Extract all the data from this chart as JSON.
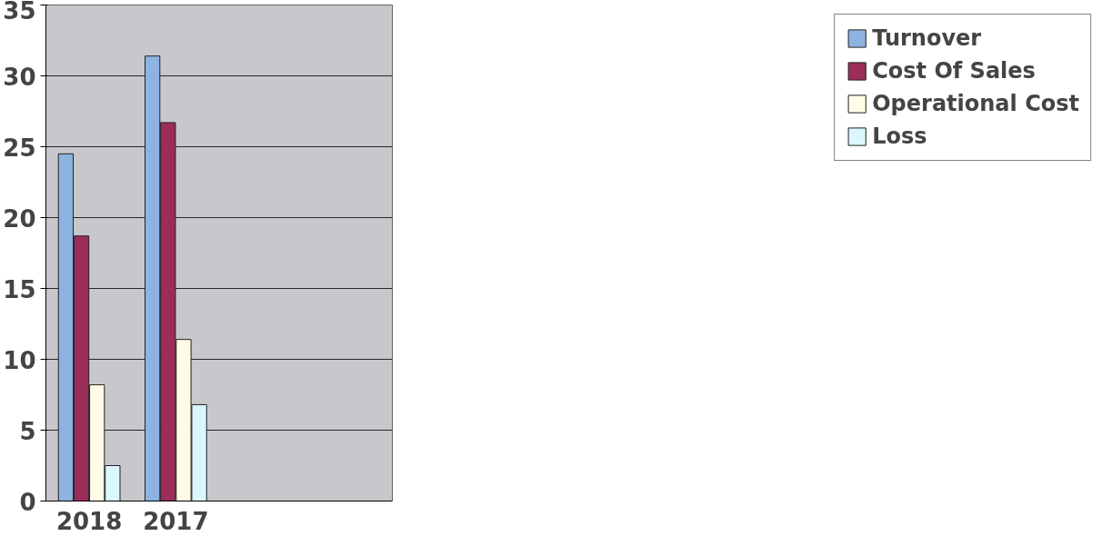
{
  "chart_data": {
    "type": "bar",
    "categories": [
      "2018",
      "2017",
      null,
      null
    ],
    "series": [
      {
        "name": "Turnover",
        "color": "#8db3e2",
        "values": [
          24.5,
          31.4,
          null,
          null
        ]
      },
      {
        "name": "Cost Of Sales",
        "color": "#9b2d5a",
        "values": [
          18.7,
          26.7,
          null,
          null
        ]
      },
      {
        "name": "Operational Cost",
        "color": "#fffbe6",
        "values": [
          8.2,
          11.4,
          null,
          null
        ]
      },
      {
        "name": "Loss",
        "color": "#d9f7fc",
        "values": [
          2.5,
          6.8,
          null,
          null
        ]
      }
    ],
    "ylim": [
      0,
      35
    ],
    "yticks": [
      0,
      5,
      10,
      15,
      20,
      25,
      30,
      35
    ],
    "grid": "y",
    "legend": "right"
  }
}
